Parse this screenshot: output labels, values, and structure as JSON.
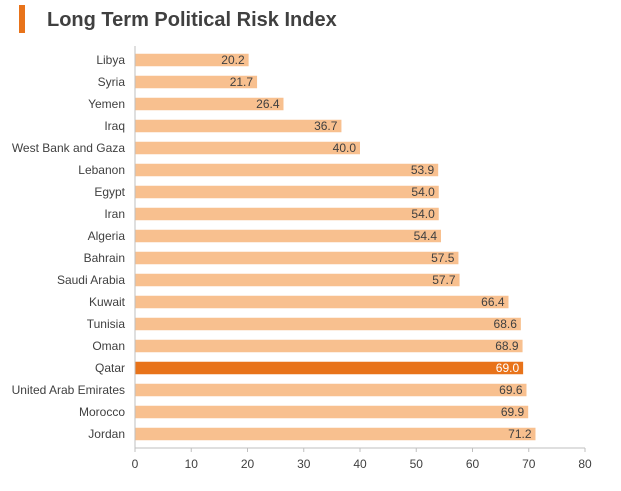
{
  "chart_data": {
    "type": "bar",
    "orientation": "horizontal",
    "title": "Long Term Political Risk Index",
    "categories": [
      "Libya",
      "Syria",
      "Yemen",
      "Iraq",
      "West Bank and Gaza",
      "Lebanon",
      "Egypt",
      "Iran",
      "Algeria",
      "Bahrain",
      "Saudi Arabia",
      "Kuwait",
      "Tunisia",
      "Oman",
      "Qatar",
      "United Arab Emirates",
      "Morocco",
      "Jordan"
    ],
    "values": [
      20.2,
      21.7,
      26.4,
      36.7,
      40.0,
      53.9,
      54.0,
      54.0,
      54.4,
      57.5,
      57.7,
      66.4,
      68.6,
      68.9,
      69.0,
      69.6,
      69.9,
      71.2
    ],
    "value_labels": [
      "20.2",
      "21.7",
      "26.4",
      "36.7",
      "40.0",
      "53.9",
      "54.0",
      "54.0",
      "54.4",
      "57.5",
      "57.7",
      "66.4",
      "68.6",
      "68.9",
      "69.0",
      "69.6",
      "69.9",
      "71.2"
    ],
    "highlight": "Qatar",
    "xlim": [
      0,
      80
    ],
    "xticks": [
      0,
      10,
      20,
      30,
      40,
      50,
      60,
      70,
      80
    ],
    "xlabel": "",
    "ylabel": "",
    "grid": false,
    "colors": {
      "bar": "#f8c08f",
      "highlight_bar": "#e8731a",
      "accent": "#e8731a",
      "label": "#404040",
      "highlight_label": "#ffffff",
      "axis": "#bfbfbf"
    }
  }
}
